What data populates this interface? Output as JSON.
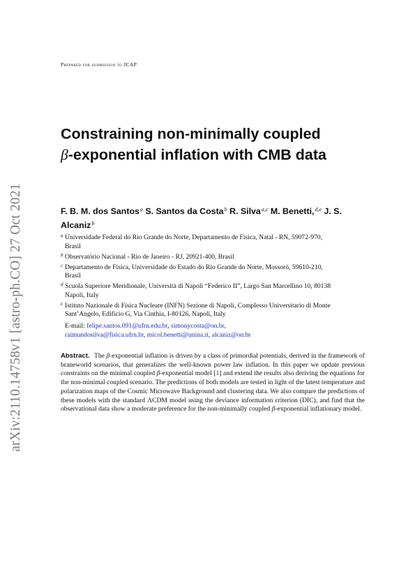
{
  "arxiv_id": "arXiv:2110.14758v1  [astro-ph.CO]  27 Oct 2021",
  "header": {
    "prepared": "Prepared for submission to JCAP"
  },
  "title": {
    "line1": "Constraining non-minimally coupled",
    "beta": "β",
    "line2_rest": "-exponential inflation with CMB data"
  },
  "authors": [
    {
      "name": "F. B. M. dos Santos",
      "marks": "a"
    },
    {
      "name": "S. Santos da Costa",
      "marks": "b"
    },
    {
      "name": "R. Silva",
      "marks": "a,c"
    },
    {
      "name": "M. Benetti,",
      "marks": "d,e"
    },
    {
      "name": "J. S. Alcaniz",
      "marks": "b"
    }
  ],
  "affiliations": [
    {
      "mark": "a",
      "text": "Universidade Federal do Rio Grande do Norte, Departamento de Física, Natal - RN, 59072-970,",
      "country": "Brasil"
    },
    {
      "mark": "b",
      "text": "Observatório Nacional - Rio de Janeiro - RJ, 20921-400, Brasil",
      "country": ""
    },
    {
      "mark": "c",
      "text": "Departamento de Física, Universidade do Estado do Rio Grande do Norte, Mossoró, 59610-210,",
      "country": "Brasil"
    },
    {
      "mark": "d",
      "text": "Scuola Superiore Meridionale, Università di Napoli “Federico II”, Largo San Marcellino 10, 80138",
      "country": "Napoli, Italy"
    },
    {
      "mark": "e",
      "text": "Istituto Nazionale di Fisica Nucleare (INFN) Sezione di Napoli, Complesso Universitario di Monte",
      "country": "Sant’Angelo, Edificio G, Via Cinthia, I-80126, Napoli, Italy"
    }
  ],
  "email": {
    "label": "E-mail:",
    "addresses": [
      "felipe.santos.091@ufrn.edu.br",
      "simonycosta@on.br",
      "raimundosilva@fisica.ufrn.br",
      "micol.benetti@unina.it",
      "alcaniz@on.br"
    ]
  },
  "abstract": {
    "label": "Abstract.",
    "s1a": "The ",
    "beta": "β",
    "s1b": "-exponential inflation is driven by a class of primordial potentials, derived in the framework of braneworld scenarios, that generalizes the well-known power law inflation.  In this paper we update previous constraints on the minimal coupled ",
    "s1c": "-exponential model [",
    "ref": "1",
    "s1d": "] and extend the results also deriving the equations for the non-minimal coupled scenario. The predictions of both models are tested in light of the latest temperature and polarization maps of the Cosmic Microwave Background and clustering data. We also compare the predictions of these models with the standard ΛCDM model using the deviance information criterion (DIC), and find that the observational data show a moderate preference for the non-minimally coupled ",
    "s1e": "-exponential inflationary model."
  }
}
